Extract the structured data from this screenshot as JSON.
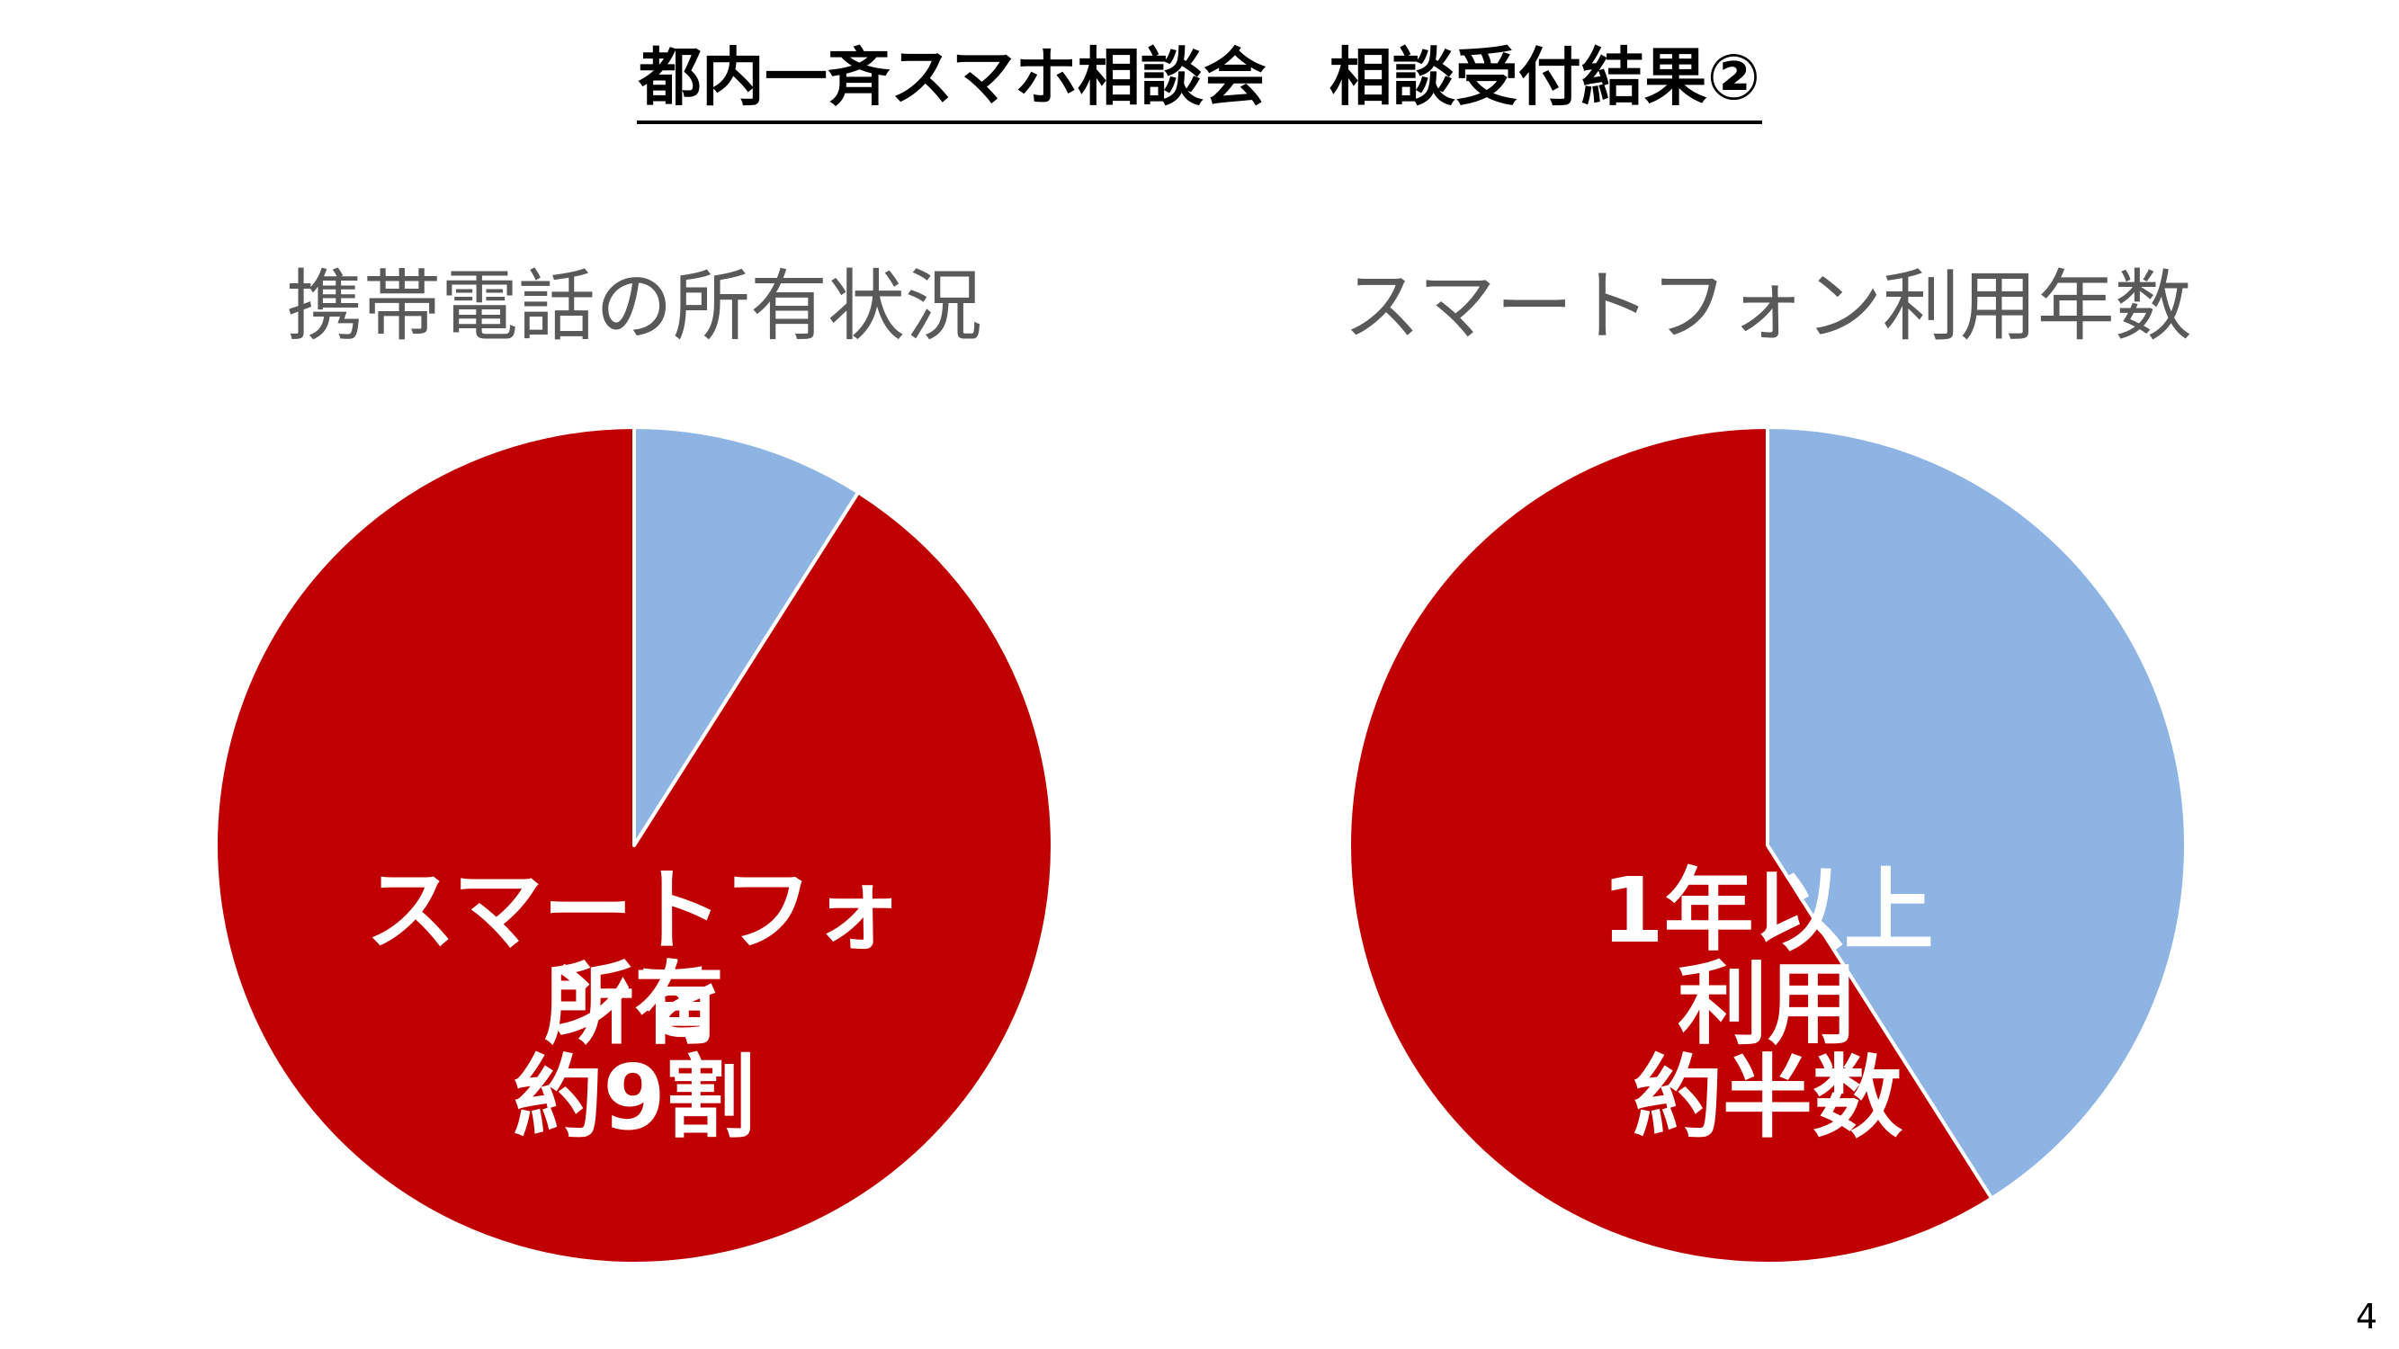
{
  "title": "都内一斉スマホ相談会　相談受付結果②",
  "colors": {
    "accent_red": "#C00000",
    "light_blue": "#8EB4E3",
    "title_gray": "#595959"
  },
  "chart_data": [
    {
      "type": "pie",
      "title": "携帯電話の所有状況",
      "slices": [
        {
          "value": 0.09,
          "color": "#8EB4E3"
        },
        {
          "value": 0.91,
          "color": "#C00000"
        }
      ],
      "annotation_lines": [
        "スマートフォンを",
        "所有",
        "約9割"
      ]
    },
    {
      "type": "pie",
      "title": "スマートフォン利用年数",
      "slices": [
        {
          "value": 0.41,
          "color": "#8EB4E3"
        },
        {
          "value": 0.59,
          "color": "#C00000"
        }
      ],
      "annotation_lines": [
        "1年以上",
        "利用",
        "約半数"
      ]
    }
  ],
  "page_number": "4"
}
